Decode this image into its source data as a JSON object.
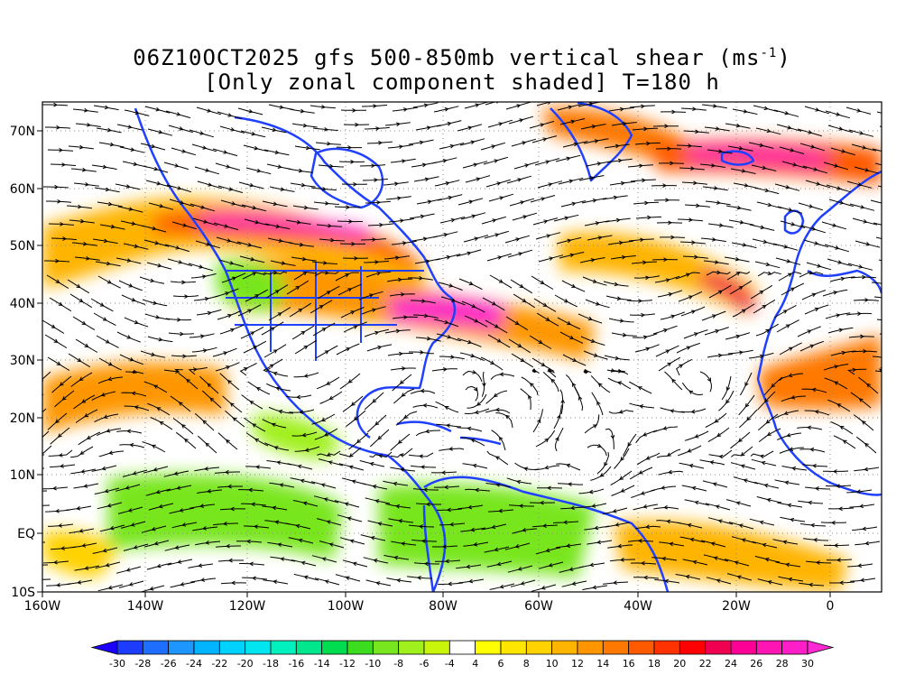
{
  "title": {
    "line1": "06Z10OCT2025 gfs 500-850mb vertical shear (ms",
    "line1_sup": "-1",
    "line1_end": ")",
    "line2": "[Only zonal component shaded] T=180 h"
  },
  "axes": {
    "x_ticks": [
      "160W",
      "140W",
      "120W",
      "100W",
      "80W",
      "60W",
      "40W",
      "20W",
      "0"
    ],
    "y_ticks": [
      "70N",
      "60N",
      "50N",
      "40N",
      "30N",
      "20N",
      "10N",
      "EQ",
      "10S"
    ]
  },
  "colorbar": {
    "labels": [
      "-30",
      "-28",
      "-26",
      "-24",
      "-22",
      "-20",
      "-18",
      "-16",
      "-14",
      "-12",
      "-10",
      "-8",
      "-6",
      "-4",
      "4",
      "6",
      "8",
      "10",
      "12",
      "14",
      "16",
      "18",
      "20",
      "22",
      "24",
      "26",
      "28",
      "30"
    ],
    "colors": [
      "#1e00ff",
      "#1c3cff",
      "#1e6eff",
      "#1e96ff",
      "#00b4ff",
      "#00d2ff",
      "#00e6f0",
      "#00f0be",
      "#00e68c",
      "#00dc50",
      "#3cdc1e",
      "#78e61e",
      "#a0f01e",
      "#c8f50a",
      "#ffffff",
      "#ffff00",
      "#ffe600",
      "#ffd200",
      "#ffb400",
      "#ff9600",
      "#ff7800",
      "#ff5a00",
      "#ff3200",
      "#ff0000",
      "#f00050",
      "#ff0096",
      "#ff14b4",
      "#ff1ec8",
      "#ff28d2"
    ]
  },
  "colors": {
    "coastline": "#2040ff",
    "streamline": "#000000",
    "grid": "#888888"
  }
}
